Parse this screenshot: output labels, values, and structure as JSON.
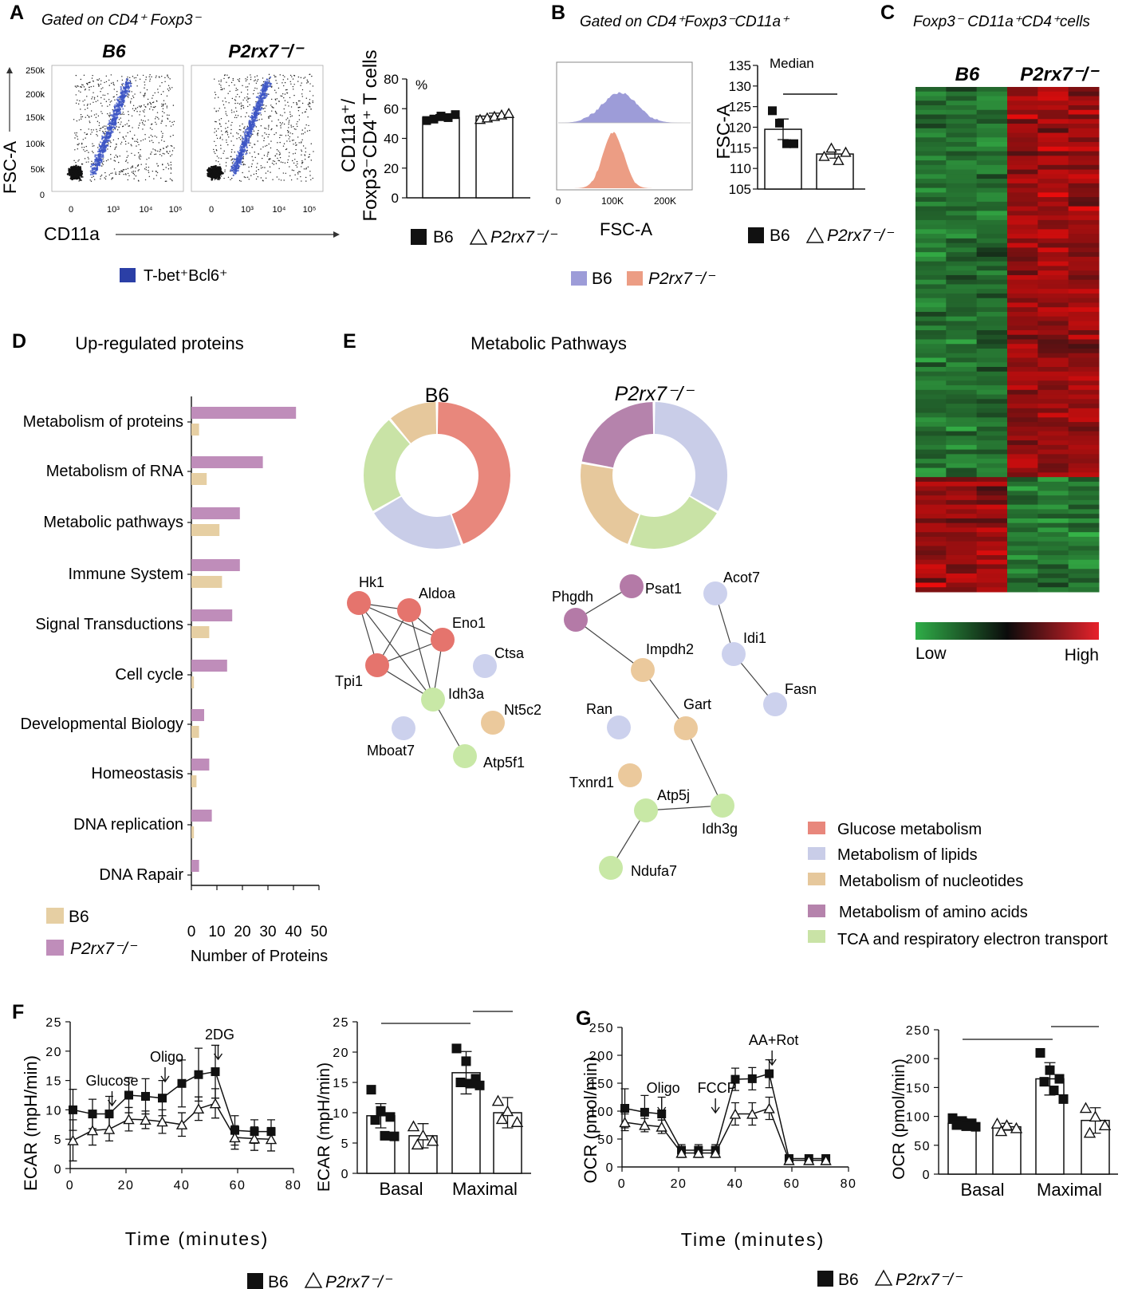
{
  "panel_A": {
    "letter": "A",
    "gate": "Gated on CD4⁺ Foxp3⁻",
    "scatter_titles": [
      "B6",
      "P2rx7⁻/⁻"
    ],
    "scatter_ylabel": "FSC-A",
    "scatter_xlabel": "CD11a",
    "scatter_yticks": [
      "250k",
      "200k",
      "150k",
      "100k",
      "50k",
      "0"
    ],
    "scatter_xticks": [
      "0",
      "10³",
      "10⁴",
      "10⁵"
    ],
    "tbet_legend": "T-bet⁺Bcl6⁺",
    "bar_ylabel_1": "CD11a⁺/",
    "bar_ylabel_2": "Foxp3⁻CD4⁺ T cells",
    "bar_unit": "%",
    "bar_legend": [
      "B6",
      "P2rx7⁻/⁻"
    ]
  },
  "panel_B": {
    "letter": "B",
    "gate": "Gated on CD4⁺Foxp3⁻CD11a⁺",
    "hist_xlabel": "FSC-A",
    "hist_xticks": [
      "0",
      "100K",
      "200K"
    ],
    "hist_legend": [
      "B6",
      "P2rx7⁻/⁻"
    ],
    "bar_ylabel": "FSC-A",
    "bar_note": "Median",
    "bar_legend": [
      "B6",
      "P2rx7⁻/⁻"
    ]
  },
  "panel_C": {
    "letter": "C",
    "title": "Foxp3⁻ CD11a⁺CD4⁺cells",
    "groups": [
      "B6",
      "P2rx7⁻/⁻"
    ],
    "scale_low": "Low",
    "scale_high": "High"
  },
  "panel_D": {
    "letter": "D",
    "title": "Up-regulated proteins",
    "xlabel": "Number of Proteins",
    "legend": [
      "B6",
      "P2rx7⁻/⁻"
    ]
  },
  "panel_E": {
    "letter": "E",
    "title": "Metabolic Pathways",
    "donut_titles": [
      "B6",
      "P2rx7⁻/⁻"
    ],
    "legend": [
      {
        "label": "Glucose metabolism",
        "color": "#e8877c"
      },
      {
        "label": "Metabolism of lipids",
        "color": "#c9cde8"
      },
      {
        "label": "Metabolism of nucleotides",
        "color": "#e6c89c"
      },
      {
        "label": "Metabolism of amino acids",
        "color": "#b583ac"
      },
      {
        "label": "TCA and respiratory electron transport",
        "color": "#c9e3a6"
      }
    ],
    "b6_nodes": [
      "Hk1",
      "Aldoa",
      "Eno1",
      "Tpi1",
      "Ctsa",
      "Idh3a",
      "Nt5c2",
      "Mboat7",
      "Atp5f1"
    ],
    "p2_nodes": [
      "Phgdh",
      "Psat1",
      "Acot7",
      "Impdh2",
      "Idi1",
      "Fasn",
      "Gart",
      "Ran",
      "Txnrd1",
      "Atp5j",
      "Idh3g",
      "Ndufa7"
    ]
  },
  "panel_F": {
    "letter": "F",
    "ylabel": "ECAR (mpH/min)",
    "xlabel": "Time (minutes)",
    "injections": [
      "Glucose",
      "Oligo",
      "2DG"
    ],
    "bar_ylabel": "ECAR (mpH/min)",
    "bar_cats": [
      "Basal",
      "Maximal"
    ],
    "legend": [
      "B6",
      "P2rx7⁻/⁻"
    ]
  },
  "panel_G": {
    "letter": "G",
    "ylabel": "OCR (pmol/min)",
    "xlabel": "Time (minutes)",
    "injections": [
      "Oligo",
      "FCCP",
      "AA+Rot"
    ],
    "bar_ylabel": "OCR (pmol/min)",
    "bar_cats": [
      "Basal",
      "Maximal"
    ],
    "legend": [
      "B6",
      "P2rx7⁻/⁻"
    ]
  },
  "chart_data": [
    {
      "id": "A_bar",
      "type": "bar",
      "categories": [
        "B6",
        "P2rx7⁻/⁻"
      ],
      "values": [
        54,
        55
      ],
      "errors": [
        2,
        2
      ],
      "points": [
        [
          52,
          53,
          55,
          54,
          56
        ],
        [
          53,
          54,
          55,
          56,
          57
        ]
      ],
      "ylim": [
        0,
        80
      ],
      "yticks": [
        0,
        20,
        40,
        60,
        80
      ],
      "ylabel": "CD11a⁺/ Foxp3⁻CD4⁺ T cells",
      "unit": "%"
    },
    {
      "id": "B_bar",
      "type": "bar",
      "categories": [
        "B6",
        "P2rx7⁻/⁻"
      ],
      "values": [
        119.5,
        113.5
      ],
      "errors": [
        2.5,
        1
      ],
      "points": [
        [
          124,
          121,
          116,
          116
        ],
        [
          113,
          115,
          112,
          114
        ]
      ],
      "ylim": [
        105,
        135
      ],
      "yticks": [
        105,
        110,
        115,
        120,
        125,
        130,
        135
      ],
      "ylabel": "FSC-A",
      "note": "Median"
    },
    {
      "id": "D_bar",
      "type": "bar",
      "orientation": "horizontal",
      "categories": [
        "Metabolism of proteins",
        "Metabolism of RNA",
        "Metabolic pathways",
        "Immune System",
        "Signal Transductions",
        "Cell cycle",
        "Developmental Biology",
        "Homeostasis",
        "DNA replication",
        "DNA Rapair"
      ],
      "series": [
        {
          "name": "P2rx7⁻/⁻",
          "values": [
            41,
            28,
            19,
            19,
            16,
            14,
            5,
            7,
            8,
            3
          ]
        },
        {
          "name": "B6",
          "values": [
            3,
            6,
            11,
            12,
            7,
            1,
            3,
            2,
            1,
            0
          ]
        }
      ],
      "xlim": [
        0,
        50
      ],
      "xticks": [
        0,
        10,
        20,
        30,
        40,
        50
      ],
      "xlabel": "Number of Proteins"
    },
    {
      "id": "E_donut_B6",
      "type": "pie",
      "title": "B6",
      "labels": [
        "Glucose metabolism",
        "Metabolism of lipids",
        "TCA and respiratory electron transport",
        "Metabolism of nucleotides"
      ],
      "values": [
        4,
        2,
        2,
        1
      ]
    },
    {
      "id": "E_donut_P2rx7",
      "type": "pie",
      "title": "P2rx7⁻/⁻",
      "labels": [
        "Metabolism of lipids",
        "TCA and respiratory electron transport",
        "Metabolism of nucleotides",
        "Metabolism of amino acids"
      ],
      "values": [
        3,
        2,
        2,
        2
      ]
    },
    {
      "id": "F_line",
      "type": "line",
      "xlabel": "Time (minutes)",
      "ylabel": "ECAR (mpH/min)",
      "xlim": [
        0,
        80
      ],
      "xticks": [
        0,
        20,
        40,
        60,
        80
      ],
      "ylim": [
        0,
        25
      ],
      "yticks": [
        0,
        5,
        10,
        15,
        20,
        25
      ],
      "x": [
        1,
        8,
        14,
        21,
        27,
        33,
        40,
        46,
        52,
        59,
        66,
        72
      ],
      "series": [
        {
          "name": "B6",
          "values": [
            10,
            9.3,
            9.3,
            12.5,
            12.3,
            12,
            14.5,
            16,
            16.5,
            6.5,
            6.3,
            6.3
          ],
          "errors": [
            3.5,
            2.5,
            3,
            3,
            3,
            3,
            4,
            4.5,
            4.5,
            2.5,
            2,
            2
          ]
        },
        {
          "name": "P2rx7⁻/⁻",
          "values": [
            4.8,
            6.5,
            6.7,
            8.4,
            8.3,
            8,
            7.5,
            10.2,
            11.1,
            5.3,
            5.1,
            5
          ],
          "errors": [
            3.5,
            2.5,
            2,
            2,
            1.5,
            2,
            2,
            2,
            2.5,
            2,
            2,
            2
          ]
        }
      ],
      "annotations": [
        {
          "label": "Glucose",
          "x": 15
        },
        {
          "label": "Oligo",
          "x": 34
        },
        {
          "label": "2DG",
          "x": 53
        }
      ]
    },
    {
      "id": "F_bar",
      "type": "bar",
      "categories": [
        "Basal",
        "Maximal"
      ],
      "ylabel": "ECAR (mpH/min)",
      "ylim": [
        0,
        25
      ],
      "yticks": [
        0,
        5,
        10,
        15,
        20,
        25
      ],
      "series": [
        {
          "name": "B6",
          "values": [
            9.5,
            16.6
          ],
          "errors": [
            2,
            3.5
          ],
          "points": [
            [
              13.8,
              10.3,
              9.3,
              8.8,
              6.2,
              6.1
            ],
            [
              20.6,
              18.5,
              15.6,
              15,
              14.8,
              14.5
            ]
          ]
        },
        {
          "name": "P2rx7⁻/⁻",
          "values": [
            6.2,
            10
          ],
          "errors": [
            2,
            2.5
          ],
          "points": [
            [
              7.8,
              6.3,
              5.4,
              4.8
            ],
            [
              12,
              10.3,
              8.5,
              9
            ]
          ]
        }
      ]
    },
    {
      "id": "G_line",
      "type": "line",
      "xlabel": "Time (minutes)",
      "ylabel": "OCR (pmol/min)",
      "xlim": [
        0,
        80
      ],
      "xticks": [
        0,
        20,
        40,
        60,
        80
      ],
      "ylim": [
        0,
        250
      ],
      "yticks": [
        0,
        50,
        100,
        150,
        200,
        250
      ],
      "x": [
        1,
        8,
        14,
        21,
        27,
        33,
        40,
        46,
        52,
        59,
        66,
        72
      ],
      "series": [
        {
          "name": "B6",
          "values": [
            105,
            98,
            95,
            30,
            30,
            30,
            157,
            158,
            167,
            15,
            15,
            15
          ],
          "errors": [
            35,
            30,
            30,
            10,
            10,
            10,
            20,
            20,
            25,
            5,
            5,
            5
          ]
        },
        {
          "name": "P2rx7⁻/⁻",
          "values": [
            80,
            75,
            72,
            25,
            25,
            25,
            95,
            95,
            105,
            12,
            12,
            12
          ],
          "errors": [
            15,
            12,
            12,
            8,
            8,
            8,
            20,
            20,
            20,
            4,
            4,
            4
          ]
        }
      ],
      "annotations": [
        {
          "label": "Oligo",
          "x": 14
        },
        {
          "label": "FCCP",
          "x": 33
        },
        {
          "label": "AA+Rot",
          "x": 53
        }
      ]
    },
    {
      "id": "G_bar",
      "type": "bar",
      "categories": [
        "Basal",
        "Maximal"
      ],
      "ylabel": "OCR (pmol/min)",
      "ylim": [
        0,
        250
      ],
      "yticks": [
        0,
        50,
        100,
        150,
        200,
        250
      ],
      "series": [
        {
          "name": "B6",
          "values": [
            88,
            165
          ],
          "errors": [
            8,
            28
          ],
          "points": [
            [
              97,
              92,
              88,
              85,
              83,
              82
            ],
            [
              210,
              180,
              165,
              160,
              145,
              130
            ]
          ]
        },
        {
          "name": "P2rx7⁻/⁻",
          "values": [
            82,
            93
          ],
          "errors": [
            6,
            22
          ],
          "points": [
            [
              88,
              85,
              80,
              75
            ],
            [
              115,
              100,
              85,
              72
            ]
          ]
        }
      ]
    }
  ]
}
